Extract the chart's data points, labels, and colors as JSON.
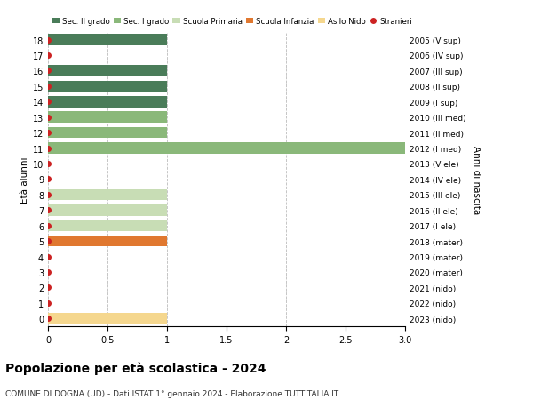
{
  "ages": [
    18,
    17,
    16,
    15,
    14,
    13,
    12,
    11,
    10,
    9,
    8,
    7,
    6,
    5,
    4,
    3,
    2,
    1,
    0
  ],
  "right_labels": [
    "2005 (V sup)",
    "2006 (IV sup)",
    "2007 (III sup)",
    "2008 (II sup)",
    "2009 (I sup)",
    "2010 (III med)",
    "2011 (II med)",
    "2012 (I med)",
    "2013 (V ele)",
    "2014 (IV ele)",
    "2015 (III ele)",
    "2016 (II ele)",
    "2017 (I ele)",
    "2018 (mater)",
    "2019 (mater)",
    "2020 (mater)",
    "2021 (nido)",
    "2022 (nido)",
    "2023 (nido)"
  ],
  "bars": [
    {
      "age": 18,
      "value": 1.0,
      "color": "#4a7c59"
    },
    {
      "age": 17,
      "value": 0,
      "color": "#4a7c59"
    },
    {
      "age": 16,
      "value": 1.0,
      "color": "#4a7c59"
    },
    {
      "age": 15,
      "value": 1.0,
      "color": "#4a7c59"
    },
    {
      "age": 14,
      "value": 1.0,
      "color": "#4a7c59"
    },
    {
      "age": 13,
      "value": 1.0,
      "color": "#8ab87a"
    },
    {
      "age": 12,
      "value": 1.0,
      "color": "#8ab87a"
    },
    {
      "age": 11,
      "value": 3.0,
      "color": "#8ab87a"
    },
    {
      "age": 10,
      "value": 0,
      "color": "#8ab87a"
    },
    {
      "age": 9,
      "value": 0,
      "color": "#8ab87a"
    },
    {
      "age": 8,
      "value": 1.0,
      "color": "#c8ddb5"
    },
    {
      "age": 7,
      "value": 1.0,
      "color": "#c8ddb5"
    },
    {
      "age": 6,
      "value": 1.0,
      "color": "#c8ddb5"
    },
    {
      "age": 5,
      "value": 1.0,
      "color": "#e07830"
    },
    {
      "age": 4,
      "value": 0,
      "color": "#e07830"
    },
    {
      "age": 3,
      "value": 0,
      "color": "#e07830"
    },
    {
      "age": 2,
      "value": 0,
      "color": "#f5d78e"
    },
    {
      "age": 1,
      "value": 0,
      "color": "#f5d78e"
    },
    {
      "age": 0,
      "value": 1.0,
      "color": "#f5d78e"
    }
  ],
  "stranieri_ages": [
    18,
    17,
    16,
    15,
    14,
    13,
    12,
    11,
    10,
    9,
    8,
    7,
    6,
    5,
    4,
    3,
    2,
    1,
    0
  ],
  "title": "Popolazione per età scolastica - 2024",
  "subtitle": "COMUNE DI DOGNA (UD) - Dati ISTAT 1° gennaio 2024 - Elaborazione TUTTITALIA.IT",
  "ylabel_left": "Età alunni",
  "ylabel_right": "Anni di nascita",
  "xlim": [
    0,
    3.0
  ],
  "xticks": [
    0,
    0.5,
    1.0,
    1.5,
    2.0,
    2.5,
    3.0
  ],
  "xticklabels": [
    "0",
    "0.5",
    "1",
    "1.5",
    "2",
    "2.5",
    "3.0"
  ],
  "colors": {
    "sec2": "#4a7c59",
    "sec1": "#8ab87a",
    "primaria": "#c8ddb5",
    "infanzia": "#e07830",
    "nido": "#f5d78e",
    "stranieri": "#cc2222"
  },
  "legend_labels": [
    "Sec. II grado",
    "Sec. I grado",
    "Scuola Primaria",
    "Scuola Infanzia",
    "Asilo Nido",
    "Stranieri"
  ],
  "legend_colors": [
    "#4a7c59",
    "#8ab87a",
    "#c8ddb5",
    "#e07830",
    "#f5d78e",
    "#cc2222"
  ],
  "background_color": "#ffffff",
  "grid_color": "#bbbbbb"
}
